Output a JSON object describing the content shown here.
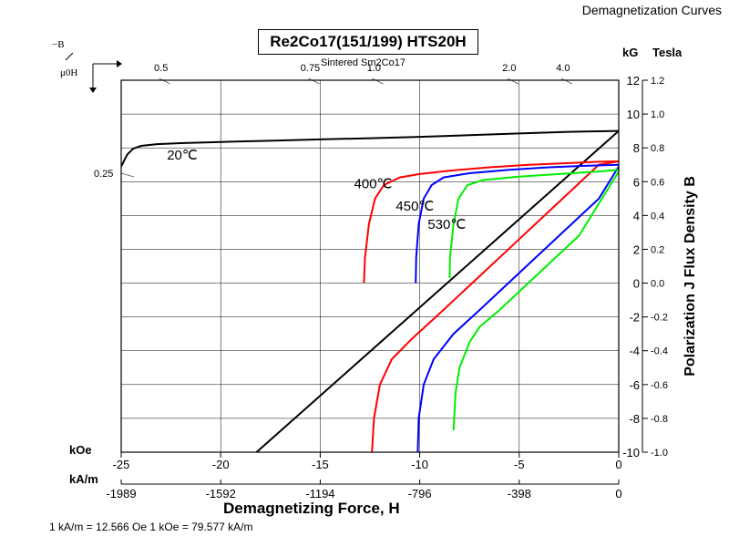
{
  "corner_title": "Demagnetization Curves",
  "chart_data": {
    "type": "line",
    "title": "Re2Co17(151/199) HTS20H",
    "xlabel": "Demagnetizing Force, H",
    "ylabel": "Polarization J Flux Density B",
    "x_unit_primary": "kOe",
    "x_unit_secondary": "kA/m",
    "y_unit_left": "kG",
    "y_unit_right": "Tesla",
    "xlim": [
      -25,
      0
    ],
    "ylim": [
      -10,
      12
    ],
    "x_ticks": [
      -25,
      -20,
      -15,
      -10,
      -5,
      0
    ],
    "x_ticks_secondary": [
      {
        "label": "-1989",
        "value": -25
      },
      {
        "label": "-1592",
        "value": -20
      },
      {
        "label": "-1194",
        "value": -15
      },
      {
        "label": "-796",
        "value": -10
      },
      {
        "label": "-398",
        "value": -5
      },
      {
        "label": "0",
        "value": 0
      }
    ],
    "y_ticks": [
      -10,
      -8,
      -6,
      -4,
      -2,
      0,
      2,
      4,
      6,
      8,
      10,
      12
    ],
    "y_ticks_tesla": [
      "-1.0",
      "-0.8",
      "-0.6",
      "-0.4",
      "-0.2",
      "0.0",
      "0.2",
      "0.4",
      "0.6",
      "0.8",
      "1.0",
      "1.2"
    ],
    "grid": true,
    "secondary_scale_label": "Sintered Sm2Co17",
    "permeance_labels": [
      {
        "label": "0.25",
        "x": -25,
        "y": 6.5
      },
      {
        "label": "0.5",
        "x": -23,
        "y": 12
      },
      {
        "label": "0.75",
        "x": -15.5,
        "y": 12
      },
      {
        "label": "1.0",
        "x": -12.3,
        "y": 12
      },
      {
        "label": "2.0",
        "x": -5.5,
        "y": 12
      },
      {
        "label": "4.0",
        "x": -2.8,
        "y": 12
      }
    ],
    "permeance_symbol": "−B",
    "permeance_symbol_denominator": "μ0H",
    "load_line": {
      "x": [
        -18.2,
        0
      ],
      "y": [
        -10,
        9.0
      ]
    },
    "series": [
      {
        "name": "20℃",
        "color": "#000000",
        "label_at": [
          -22.7,
          7.3
        ],
        "x": [
          -25,
          -24.7,
          -24.4,
          -24.0,
          -23.2,
          -22,
          -20,
          -17.5,
          -15,
          -12.5,
          -10,
          -7.5,
          -5,
          -2.5,
          0
        ],
        "y": [
          6.9,
          7.6,
          7.95,
          8.12,
          8.22,
          8.28,
          8.35,
          8.42,
          8.5,
          8.57,
          8.65,
          8.75,
          8.85,
          8.95,
          9.0
        ]
      },
      {
        "name": "400℃",
        "color": "#ff0000",
        "label_at": [
          -13.3,
          5.6
        ],
        "J": {
          "x": [
            -12.8,
            -12.75,
            -12.55,
            -12.25,
            -11.8,
            -11.0,
            -10.0,
            -8.5,
            -6.5,
            -4.5,
            -2.5,
            -1.0,
            0
          ],
          "y": [
            0,
            1.5,
            3.5,
            5.0,
            5.8,
            6.25,
            6.45,
            6.65,
            6.85,
            7.0,
            7.1,
            7.18,
            7.2
          ]
        },
        "B": {
          "x": [
            -12.4,
            -12.3,
            -12.0,
            -11.4,
            -10.4,
            -9.0,
            -7.0,
            -5.0,
            -3.0,
            -1.0,
            0
          ],
          "y": [
            -10,
            -8.0,
            -6.0,
            -4.5,
            -3.3,
            -1.8,
            0.4,
            2.6,
            4.8,
            7.0,
            7.2
          ]
        }
      },
      {
        "name": "450℃",
        "color": "#0000ff",
        "label_at": [
          -11.2,
          4.3
        ],
        "J": {
          "x": [
            -10.2,
            -10.18,
            -10.05,
            -9.8,
            -9.4,
            -8.8,
            -7.5,
            -5.5,
            -3.5,
            -1.5,
            0
          ],
          "y": [
            0,
            1.5,
            3.5,
            5.0,
            5.8,
            6.25,
            6.5,
            6.7,
            6.85,
            6.95,
            7.0
          ]
        },
        "B": {
          "x": [
            -10.1,
            -10.05,
            -9.8,
            -9.3,
            -8.3,
            -7.0,
            -5.0,
            -3.0,
            -1.0,
            0
          ],
          "y": [
            -10,
            -8.0,
            -6.0,
            -4.5,
            -3.0,
            -1.6,
            0.6,
            2.8,
            5.0,
            6.9
          ]
        }
      },
      {
        "name": "530℃",
        "color": "#00ee00",
        "label_at": [
          -9.6,
          3.2
        ],
        "J": {
          "x": [
            -8.5,
            -8.48,
            -8.3,
            -8.05,
            -7.6,
            -6.8,
            -5.0,
            -3.0,
            -1.0,
            0
          ],
          "y": [
            0.3,
            1.5,
            3.5,
            5.0,
            5.8,
            6.1,
            6.3,
            6.45,
            6.6,
            6.7
          ]
        },
        "B": {
          "x": [
            -8.3,
            -8.2,
            -8.0,
            -7.5,
            -7.0,
            -6.0,
            -4.0,
            -2.0,
            0
          ],
          "y": [
            -8.7,
            -6.5,
            -5.0,
            -3.5,
            -2.6,
            -1.6,
            0.6,
            2.8,
            6.6
          ]
        }
      }
    ]
  },
  "footnote": "1 kA/m = 12.566 Oe 1 kOe = 79.577 kA/m"
}
